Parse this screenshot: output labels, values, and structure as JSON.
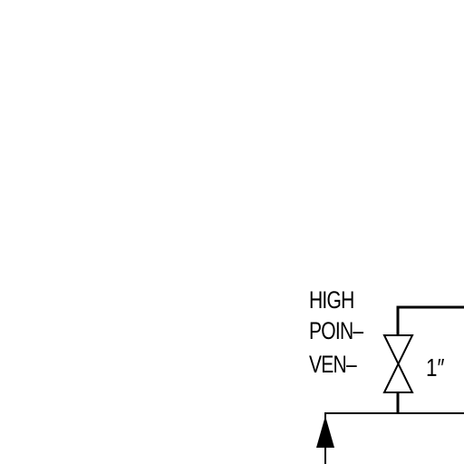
{
  "vent_label": {
    "line1": "HIGH",
    "line2": "POIN‒",
    "line3": "VEN‒"
  },
  "valve": {
    "size": "1″"
  },
  "colors": {
    "line": "#000000",
    "background": "#ffffff"
  },
  "icons": {
    "valve": "gate-valve-icon",
    "flow_arrow": "flow-arrow-up-icon"
  }
}
